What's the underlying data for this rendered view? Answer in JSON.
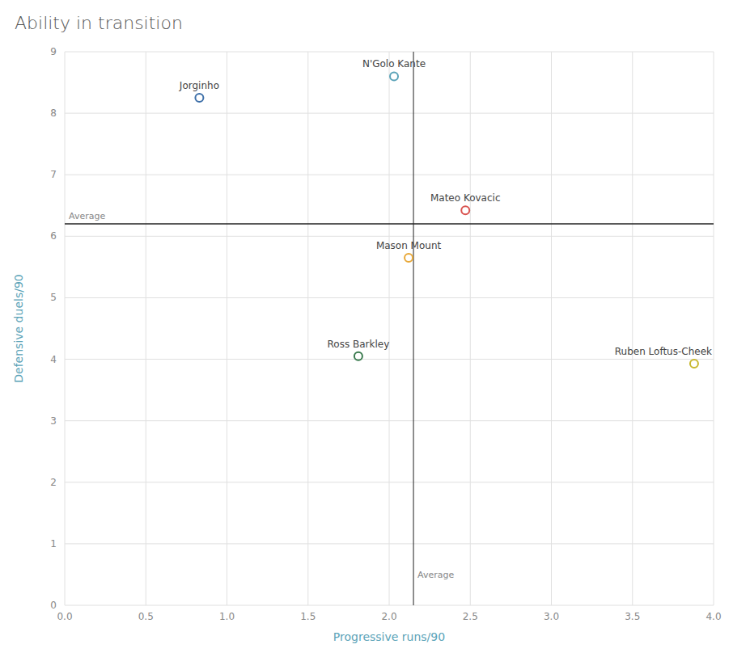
{
  "chart_data": {
    "type": "scatter",
    "title": "Ability in transition",
    "x_label": "Progressive runs/90",
    "y_label": "Defensive duels/90",
    "xlim": [
      0.0,
      4.0
    ],
    "ylim": [
      0.0,
      9.0
    ],
    "xticks": [
      {
        "value": 0,
        "label": "0.0"
      },
      0.5,
      {
        "value": 1,
        "label": "1.0"
      },
      1.5,
      {
        "value": 2,
        "label": "2.0"
      },
      2.5,
      {
        "value": 3,
        "label": "3.0"
      },
      3.5,
      {
        "value": 4,
        "label": "4.0"
      }
    ],
    "yticks": [
      0,
      1,
      2,
      3,
      4,
      5,
      6,
      7,
      8,
      9
    ],
    "grid": true,
    "marker": "circle",
    "labels": [
      "Jorginho",
      "N'Golo Kante",
      "Mateo Kovacic",
      "Mason Mount",
      "Ross Barkley",
      "Ruben Loftus-Cheek"
    ],
    "x": [
      0.83,
      2.03,
      2.47,
      2.12,
      1.81,
      3.88
    ],
    "values": [
      8.25,
      8.6,
      6.42,
      5.65,
      4.05,
      3.93
    ],
    "colors": [
      "#3d6fa8",
      "#5ba3b8",
      "#d9534f",
      "#e8a838",
      "#3a7a4e",
      "#c8b830"
    ],
    "reference_lines": [
      {
        "axis": "x",
        "value": 2.15,
        "label": "Average"
      },
      {
        "axis": "y",
        "value": 6.2,
        "label": "Average"
      }
    ]
  }
}
